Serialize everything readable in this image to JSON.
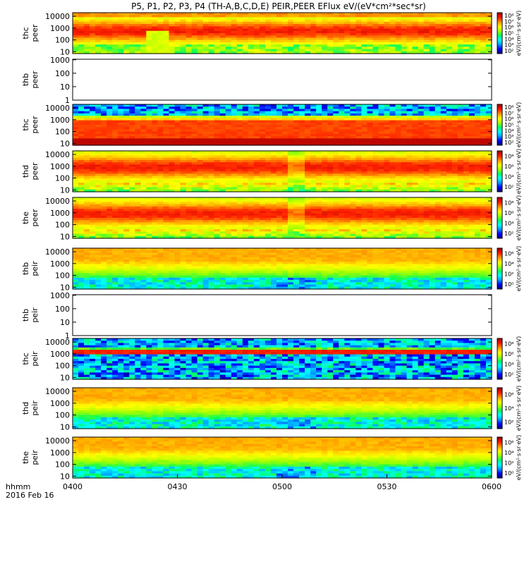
{
  "chart_data": {
    "type": "heatmap",
    "title": "P5, P1, P2, P3, P4 (TH-A,B,C,D,E) PEIR,PEER EFlux eV/(eV*cm²*sec*sr)",
    "x_axis": {
      "range": [
        "0400",
        "0600"
      ],
      "ticks": [
        "0400",
        "0430",
        "0500",
        "0530",
        "0600"
      ],
      "label": "hhmm",
      "date": "2016 Feb 16"
    },
    "panels": [
      {
        "name": "thc peer",
        "label": [
          "thc",
          "peer"
        ],
        "empty": false,
        "style": "thc_peer",
        "y_ticks": [
          "10",
          "100",
          "1000",
          "10000"
        ],
        "y_range": [
          7,
          20000
        ],
        "log_y": true,
        "colorbar": {
          "ticks": [
            "10²",
            "10³",
            "10⁴",
            "10⁵",
            "10⁶",
            "10⁷",
            "10⁸"
          ],
          "label": "eV/(cm²·s·sr·eV)"
        }
      },
      {
        "name": "thb peer",
        "label": [
          "thb",
          "peer"
        ],
        "empty": true,
        "y_ticks": [
          "1",
          "10",
          "100",
          "1000"
        ],
        "y_range": [
          1,
          1100
        ],
        "log_y": true,
        "colorbar": null
      },
      {
        "name": "thc peer",
        "label": [
          "thc",
          "peer"
        ],
        "empty": false,
        "style": "thc_peer2",
        "y_ticks": [
          "10",
          "100",
          "1000",
          "10000"
        ],
        "y_range": [
          7,
          20000
        ],
        "log_y": true,
        "colorbar": {
          "ticks": [
            "10²",
            "10³",
            "10⁴",
            "10⁵",
            "10⁶",
            "10⁷",
            "10⁸"
          ],
          "label": "eV/(cm²·s·sr·eV)"
        }
      },
      {
        "name": "thd peer",
        "label": [
          "thd",
          "peer"
        ],
        "empty": false,
        "style": "thd_peer",
        "y_ticks": [
          "10",
          "100",
          "1000",
          "10000"
        ],
        "y_range": [
          7,
          20000
        ],
        "log_y": true,
        "colorbar": {
          "ticks": [
            "10²",
            "10⁴",
            "10⁶",
            "10⁸"
          ],
          "label": "eV/(cm²·s·sr·eV)"
        }
      },
      {
        "name": "the peer",
        "label": [
          "the",
          "peer"
        ],
        "empty": false,
        "style": "the_peer",
        "y_ticks": [
          "10",
          "100",
          "1000",
          "10000"
        ],
        "y_range": [
          7,
          20000
        ],
        "log_y": true,
        "colorbar": {
          "ticks": [
            "10²",
            "10⁴",
            "10⁶",
            "10⁸"
          ],
          "label": "eV/(cm²·s·sr·eV)"
        }
      },
      {
        "name": "thb peir",
        "label": [
          "thb",
          "peir"
        ],
        "empty": false,
        "style": "peir",
        "y_ticks": [
          "10",
          "100",
          "1000",
          "10000"
        ],
        "y_range": [
          7,
          20000
        ],
        "log_y": true,
        "colorbar": {
          "ticks": [
            "10⁰",
            "10²",
            "10⁴",
            "10⁶"
          ],
          "label": "eV/(cm²·s·sr·eV)"
        }
      },
      {
        "name": "thb peir",
        "label": [
          "thb",
          "peir"
        ],
        "empty": true,
        "y_ticks": [
          "1",
          "10",
          "100",
          "1000"
        ],
        "y_range": [
          1,
          1100
        ],
        "log_y": true,
        "colorbar": null
      },
      {
        "name": "thc peir",
        "label": [
          "thc",
          "peir"
        ],
        "empty": false,
        "style": "thc_peir",
        "y_ticks": [
          "10",
          "100",
          "1000",
          "10000"
        ],
        "y_range": [
          7,
          20000
        ],
        "log_y": true,
        "colorbar": {
          "ticks": [
            "10²",
            "10⁴",
            "10⁶",
            "10⁸"
          ],
          "label": "eV/(cm²·s·sr·eV)"
        }
      },
      {
        "name": "thd peir",
        "label": [
          "thd",
          "peir"
        ],
        "empty": false,
        "style": "peir",
        "y_ticks": [
          "10",
          "100",
          "1000",
          "10000"
        ],
        "y_range": [
          7,
          20000
        ],
        "log_y": true,
        "colorbar": {
          "ticks": [
            "10²",
            "10⁴",
            "10⁶"
          ],
          "label": "eV/(cm²·s·sr·eV)"
        }
      },
      {
        "name": "the peir",
        "label": [
          "the",
          "peir"
        ],
        "empty": false,
        "style": "peir",
        "y_ticks": [
          "10",
          "100",
          "1000",
          "10000"
        ],
        "y_range": [
          7,
          20000
        ],
        "log_y": true,
        "colorbar": {
          "ticks": [
            "10⁰",
            "10²",
            "10⁴",
            "10⁶"
          ],
          "label": "eV/(cm²·s·sr·eV)"
        }
      }
    ],
    "colormap": [
      "#000080",
      "#0000ff",
      "#00a0ff",
      "#00ffff",
      "#00ff60",
      "#a0ff00",
      "#ffff00",
      "#ffa000",
      "#ff2000",
      "#b00000"
    ]
  }
}
